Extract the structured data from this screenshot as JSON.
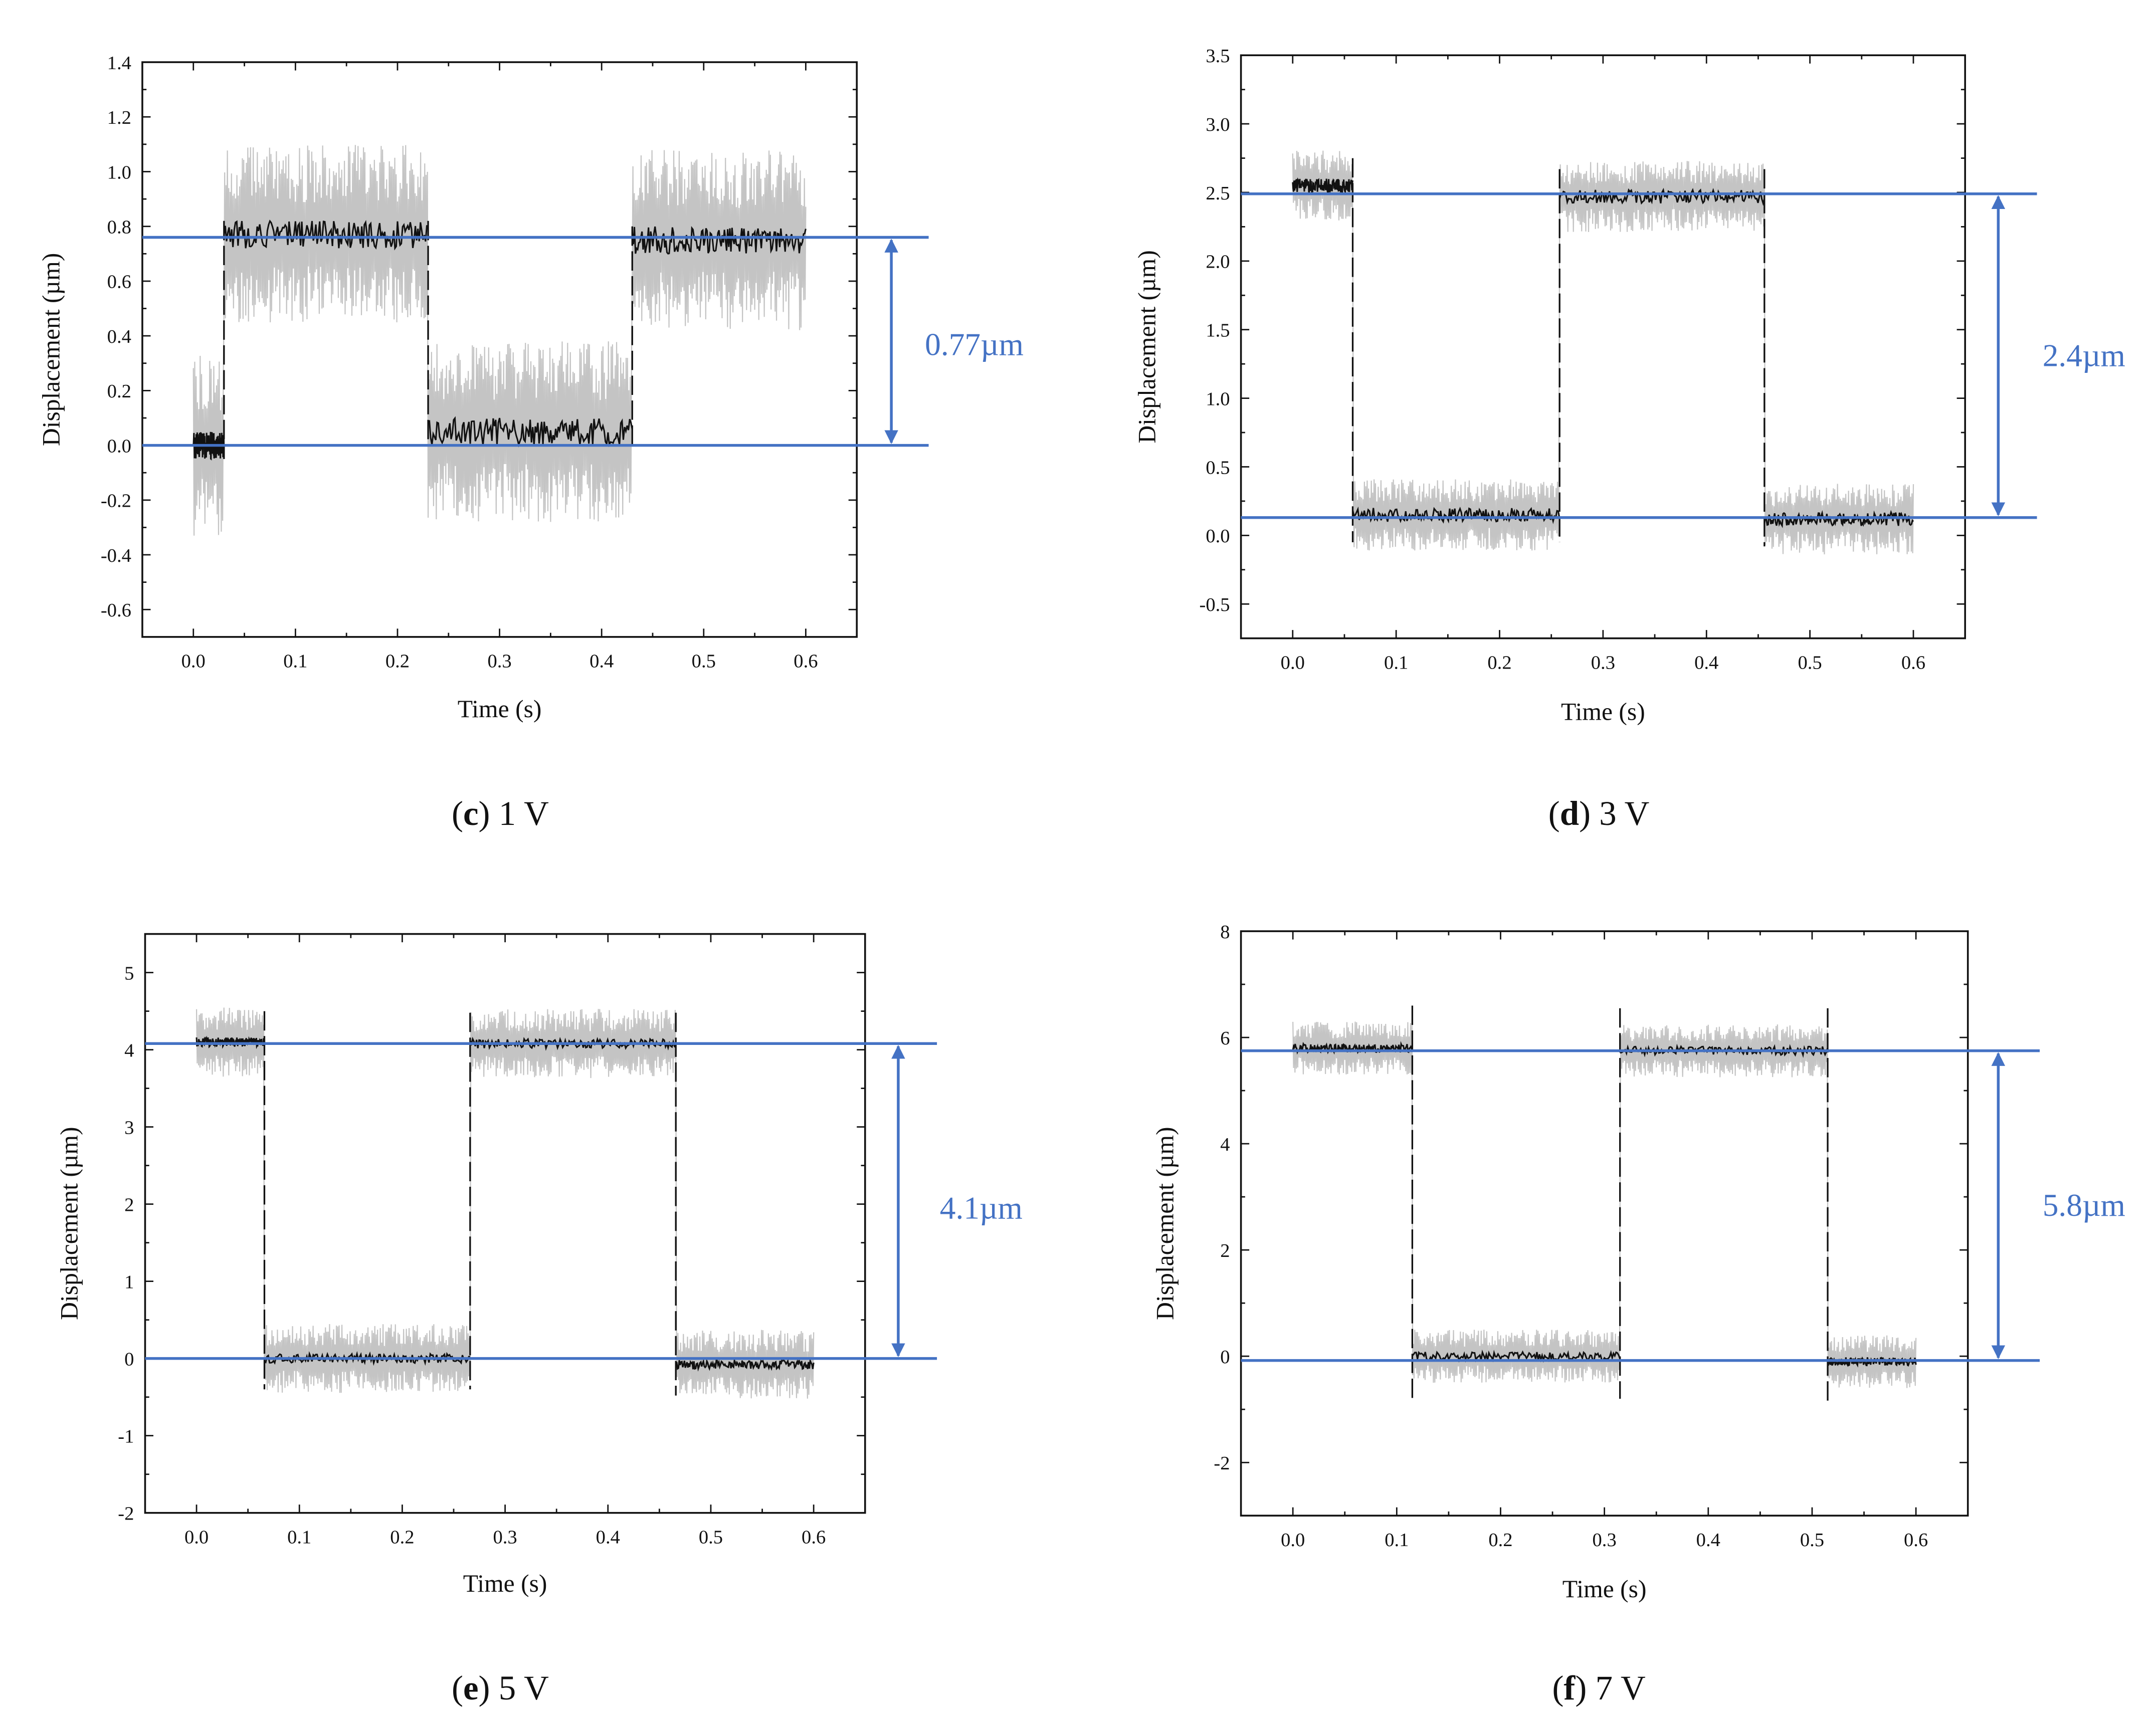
{
  "figure": {
    "colors": {
      "reference": "#4472c4",
      "signal": "#111111",
      "noise": "#c4c4c4",
      "axis": "#111111"
    }
  },
  "chart_data": [
    {
      "type": "line",
      "panel": "c",
      "caption_letter": "c",
      "caption_text": "1 V",
      "xlabel": "Time (s)",
      "ylabel": "Displacement (µm)",
      "xlim": [
        -0.05,
        0.65
      ],
      "ylim": [
        -0.7,
        1.4
      ],
      "x_ticks": [
        0.0,
        0.1,
        0.2,
        0.3,
        0.4,
        0.5,
        0.6
      ],
      "x_tick_labels": [
        "0.0",
        "0.1",
        "0.2",
        "0.3",
        "0.4",
        "0.5",
        "0.6"
      ],
      "y_ticks": [
        -0.6,
        -0.4,
        -0.2,
        0.0,
        0.2,
        0.4,
        0.6,
        0.8,
        1.0,
        1.2,
        1.4
      ],
      "y_tick_labels": [
        "-0.6",
        "-0.4",
        "-0.2",
        "0.0",
        "0.2",
        "0.4",
        "0.6",
        "0.8",
        "1.0",
        "1.2",
        "1.4"
      ],
      "segments": [
        {
          "t_start": 0.0,
          "t_end": 0.03,
          "level": 0.0
        },
        {
          "t_start": 0.03,
          "t_end": 0.23,
          "level": 0.77
        },
        {
          "t_start": 0.23,
          "t_end": 0.43,
          "level": 0.05
        },
        {
          "t_start": 0.43,
          "t_end": 0.6,
          "level": 0.75
        }
      ],
      "noise_amplitude": 0.33,
      "signal_noise": 0.05,
      "step_overshoot": 0.05,
      "reference_lines": {
        "high": 0.76,
        "low": 0.0
      },
      "annotation": "0.77µm"
    },
    {
      "type": "line",
      "panel": "d",
      "caption_letter": "d",
      "caption_text": "3 V",
      "xlabel": "Time (s)",
      "ylabel": "Displacement (µm)",
      "xlim": [
        -0.05,
        0.65
      ],
      "ylim": [
        -0.75,
        3.5
      ],
      "x_ticks": [
        0.0,
        0.1,
        0.2,
        0.3,
        0.4,
        0.5,
        0.6
      ],
      "x_tick_labels": [
        "0.0",
        "0.1",
        "0.2",
        "0.3",
        "0.4",
        "0.5",
        "0.6"
      ],
      "y_ticks": [
        -0.5,
        0.0,
        0.5,
        1.0,
        1.5,
        2.0,
        2.5,
        3.0,
        3.5
      ],
      "y_tick_labels": [
        "-0.5",
        "0.0",
        "0.5",
        "1.0",
        "1.5",
        "2.0",
        "2.5",
        "3.0",
        "3.5"
      ],
      "segments": [
        {
          "t_start": 0.0,
          "t_end": 0.058,
          "level": 2.55
        },
        {
          "t_start": 0.058,
          "t_end": 0.258,
          "level": 0.15
        },
        {
          "t_start": 0.258,
          "t_end": 0.456,
          "level": 2.47
        },
        {
          "t_start": 0.456,
          "t_end": 0.6,
          "level": 0.12
        }
      ],
      "noise_amplitude": 0.26,
      "signal_noise": 0.05,
      "step_overshoot": 0.2,
      "reference_lines": {
        "high": 2.49,
        "low": 0.13
      },
      "annotation": "2.4µm"
    },
    {
      "type": "line",
      "panel": "e",
      "caption_letter": "e",
      "caption_text": "5 V",
      "xlabel": "Time (s)",
      "ylabel": "Displacement (µm)",
      "xlim": [
        -0.05,
        0.65
      ],
      "ylim": [
        -2,
        5.5
      ],
      "x_ticks": [
        0.0,
        0.1,
        0.2,
        0.3,
        0.4,
        0.5,
        0.6
      ],
      "x_tick_labels": [
        "0.0",
        "0.1",
        "0.2",
        "0.3",
        "0.4",
        "0.5",
        "0.6"
      ],
      "y_ticks": [
        -2,
        -1,
        0,
        1,
        2,
        3,
        4,
        5
      ],
      "y_tick_labels": [
        "-2",
        "-1",
        "0",
        "1",
        "2",
        "3",
        "4",
        "5"
      ],
      "segments": [
        {
          "t_start": 0.0,
          "t_end": 0.066,
          "level": 4.1
        },
        {
          "t_start": 0.066,
          "t_end": 0.266,
          "level": 0.0
        },
        {
          "t_start": 0.266,
          "t_end": 0.466,
          "level": 4.08
        },
        {
          "t_start": 0.466,
          "t_end": 0.6,
          "level": -0.08
        }
      ],
      "noise_amplitude": 0.45,
      "signal_noise": 0.06,
      "step_overshoot": 0.4,
      "reference_lines": {
        "high": 4.08,
        "low": 0.0
      },
      "annotation": "4.1µm"
    },
    {
      "type": "line",
      "panel": "f",
      "caption_letter": "f",
      "caption_text": "7 V",
      "xlabel": "Time (s)",
      "ylabel": "Displacement (µm)",
      "xlim": [
        -0.05,
        0.65
      ],
      "ylim": [
        -3,
        8
      ],
      "x_ticks": [
        0.0,
        0.1,
        0.2,
        0.3,
        0.4,
        0.5,
        0.6
      ],
      "x_tick_labels": [
        "0.0",
        "0.1",
        "0.2",
        "0.3",
        "0.4",
        "0.5",
        "0.6"
      ],
      "y_ticks": [
        -2,
        0,
        2,
        4,
        6,
        8
      ],
      "y_tick_labels": [
        "-2",
        "0",
        "2",
        "4",
        "6",
        "8"
      ],
      "segments": [
        {
          "t_start": 0.0,
          "t_end": 0.115,
          "level": 5.8
        },
        {
          "t_start": 0.115,
          "t_end": 0.315,
          "level": 0.0
        },
        {
          "t_start": 0.315,
          "t_end": 0.515,
          "level": 5.75
        },
        {
          "t_start": 0.515,
          "t_end": 0.6,
          "level": -0.1
        }
      ],
      "noise_amplitude": 0.5,
      "signal_noise": 0.08,
      "step_overshoot": 0.8,
      "reference_lines": {
        "high": 5.75,
        "low": -0.08
      },
      "annotation": "5.8µm"
    }
  ]
}
